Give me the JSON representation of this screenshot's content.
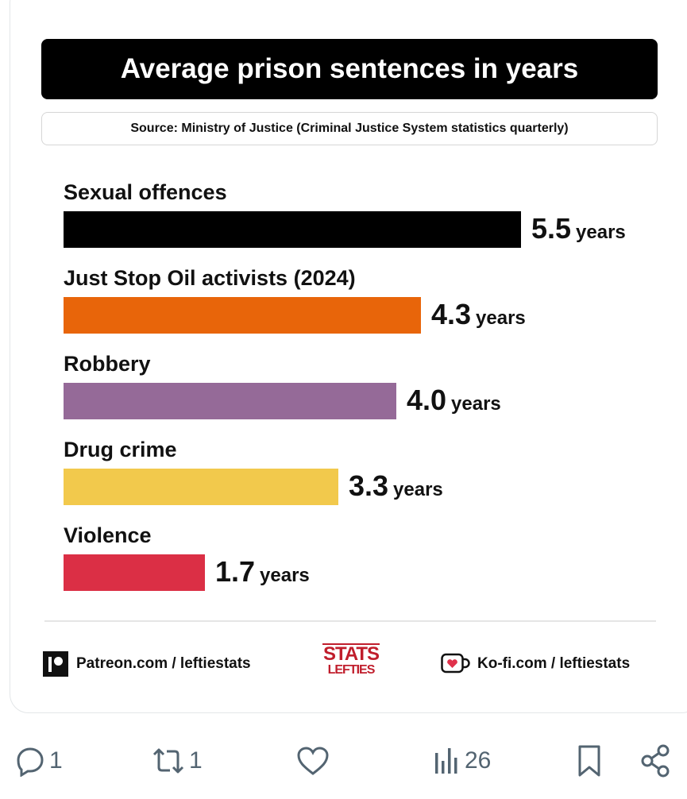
{
  "chart_data": {
    "type": "bar",
    "orientation": "horizontal",
    "title": "Average prison sentences in years",
    "subtitle": "Source: Ministry of Justice (Criminal Justice System statistics quarterly)",
    "unit": "years",
    "categories": [
      "Sexual offences",
      "Just Stop Oil activists (2024)",
      "Robbery",
      "Drug crime",
      "Violence"
    ],
    "values": [
      5.5,
      4.3,
      4.0,
      3.3,
      1.7
    ],
    "value_labels": [
      "5.5",
      "4.3",
      "4.0",
      "3.3",
      "1.7"
    ],
    "colors": [
      "#000000",
      "#e8650a",
      "#956a98",
      "#f2c94c",
      "#db2f45"
    ],
    "xlim": [
      0,
      5.5
    ],
    "grid": false,
    "legend": "none"
  },
  "footer": {
    "patreon": "Patreon.com / leftiestats",
    "logo_top": "STATS",
    "logo_bottom": "LEFTIES",
    "kofi": "Ko-fi.com / leftiestats"
  },
  "actions": {
    "replies": "1",
    "reposts": "1",
    "views": "26"
  },
  "colors": {
    "icon_grey": "#536471",
    "kofi_red": "#e0314b"
  }
}
